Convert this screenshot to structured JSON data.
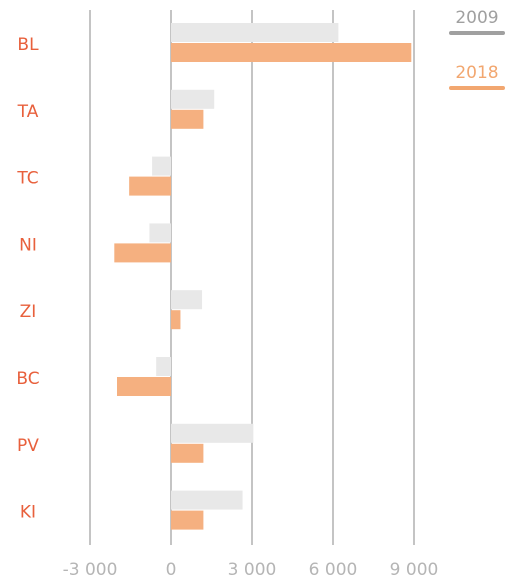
{
  "chart_data": {
    "type": "barh",
    "categories": [
      "BL",
      "TA",
      "TC",
      "NI",
      "ZI",
      "BC",
      "PV",
      "KI"
    ],
    "series": [
      {
        "name": "2009",
        "color": "#e8e8e8",
        "legend_color": "#a0a0a0",
        "values": [
          6200,
          1600,
          -700,
          -800,
          1150,
          -550,
          3050,
          2650
        ]
      },
      {
        "name": "2018",
        "color": "#f5b080",
        "legend_color": "#f2a770",
        "values": [
          8900,
          1200,
          -1550,
          -2100,
          350,
          -2000,
          1200,
          1200
        ]
      }
    ],
    "xlim": [
      -3000,
      9000
    ],
    "xticks": [
      {
        "value": -3000,
        "label": "-3 000"
      },
      0,
      {
        "value": 3000,
        "label": "3 000"
      },
      {
        "value": 6000,
        "label": "6 000"
      },
      {
        "value": 9000,
        "label": "9 000"
      }
    ],
    "grid": true
  }
}
